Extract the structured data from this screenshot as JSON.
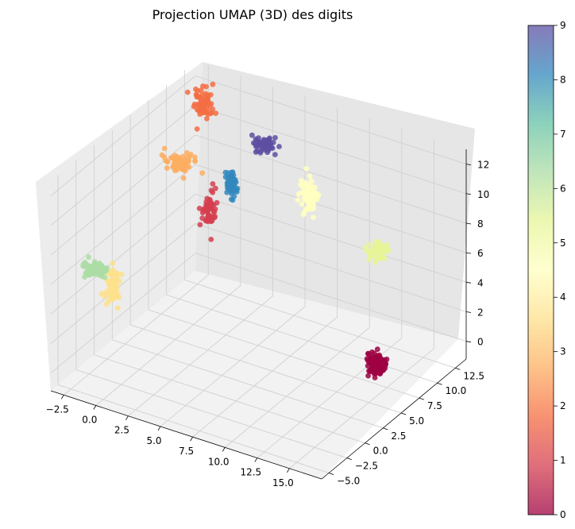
{
  "chart_data": {
    "type": "scatter",
    "title": "Projection UMAP (3D) des digits",
    "xlabel": "",
    "ylabel": "",
    "zlabel": "",
    "grid": true,
    "x_ticks": [
      "−2.5",
      "0.0",
      "2.5",
      "5.0",
      "7.5",
      "10.0",
      "12.5",
      "15.0"
    ],
    "y_ticks": [
      "−5.0",
      "−2.5",
      "0.0",
      "2.5",
      "5.0",
      "7.5",
      "10.0",
      "12.5"
    ],
    "z_ticks": [
      "0",
      "2",
      "4",
      "6",
      "8",
      "10",
      "12"
    ],
    "xlim": [
      -3.5,
      17.5
    ],
    "ylim": [
      -6.0,
      14.0
    ],
    "zlim": [
      -1.2,
      13.0
    ],
    "colormap": "Spectral",
    "colorbar": {
      "ticks": [
        "0",
        "1",
        "2",
        "3",
        "4",
        "5",
        "6",
        "7",
        "8",
        "9"
      ],
      "range": [
        0,
        9
      ],
      "stops": [
        "#9e0142",
        "#d53e4f",
        "#f46d43",
        "#fdae61",
        "#fee08b",
        "#ffffbf",
        "#e6f598",
        "#abdda4",
        "#66c2a5",
        "#3288bd",
        "#5e4fa2"
      ]
    },
    "clusters": [
      {
        "label": 0,
        "color": "#9e0142",
        "center": [
          16.8,
          2.8,
          2.8
        ],
        "spread": [
          0.35,
          0.35,
          0.35
        ],
        "count": 90
      },
      {
        "label": 1,
        "color": "#d53e4f",
        "center": [
          1.8,
          6.5,
          7.5
        ],
        "spread": [
          0.25,
          0.4,
          0.6
        ],
        "count": 55
      },
      {
        "label": 2,
        "color": "#f46d43",
        "center": [
          -0.3,
          9.5,
          12.8
        ],
        "spread": [
          0.3,
          0.3,
          0.5
        ],
        "count": 70
      },
      {
        "label": 3,
        "color": "#fdae61",
        "center": [
          -1.2,
          7.5,
          9.5
        ],
        "spread": [
          0.6,
          0.4,
          0.3
        ],
        "count": 70
      },
      {
        "label": 4,
        "color": "#fee08b",
        "center": [
          -3.2,
          2.0,
          2.8
        ],
        "spread": [
          0.25,
          0.2,
          0.6
        ],
        "count": 65
      },
      {
        "label": 5,
        "color": "#ffffbf",
        "center": [
          5.8,
          13.0,
          6.8
        ],
        "spread": [
          0.35,
          0.3,
          0.6
        ],
        "count": 70
      },
      {
        "label": 6,
        "color": "#e6f598",
        "center": [
          13.0,
          10.0,
          6.5
        ],
        "spread": [
          0.35,
          0.35,
          0.3
        ],
        "count": 65
      },
      {
        "label": 7,
        "color": "#abdda4",
        "center": [
          -3.8,
          0.5,
          4.2
        ],
        "spread": [
          0.4,
          0.4,
          0.25
        ],
        "count": 70
      },
      {
        "label": 8,
        "color": "#3288bd",
        "center": [
          1.8,
          9.5,
          8.0
        ],
        "spread": [
          0.2,
          0.25,
          0.5
        ],
        "count": 60
      },
      {
        "label": 9,
        "color": "#5e4fa2",
        "center": [
          3.0,
          12.0,
          10.0
        ],
        "spread": [
          0.35,
          0.3,
          0.2
        ],
        "count": 60
      }
    ]
  }
}
